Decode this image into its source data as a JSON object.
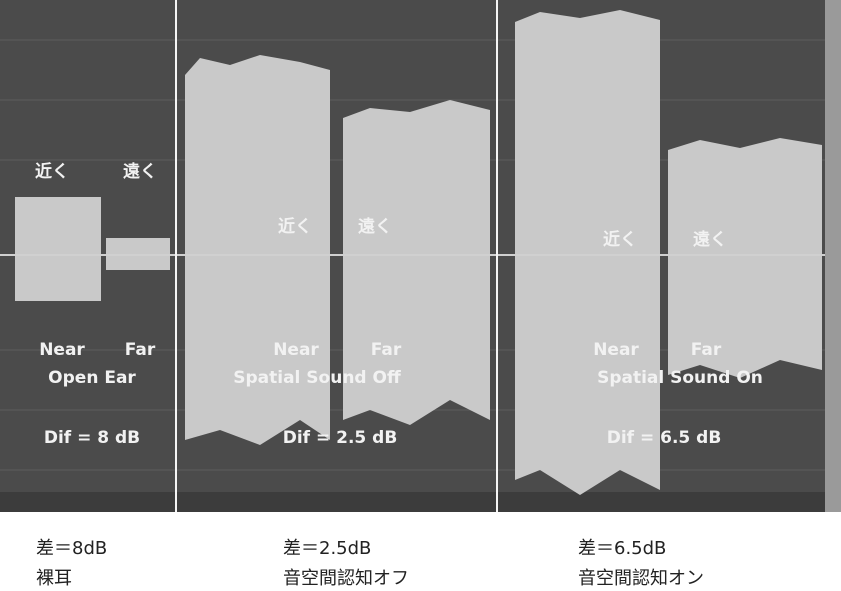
{
  "panels": [
    {
      "near_jp": "近く",
      "far_jp": "遠く",
      "near": "Near",
      "far": "Far",
      "condition": "Open Ear",
      "dif": "Dif = 8 dB",
      "caption_dif": "差＝8dB",
      "caption_condition": "裸耳"
    },
    {
      "near_jp": "近く",
      "far_jp": "遠く",
      "near": "Near",
      "far": "Far",
      "condition": "Spatial Sound Off",
      "dif": "Dif = 2.5 dB",
      "caption_dif": "差＝2.5dB",
      "caption_condition": "音空間認知オフ"
    },
    {
      "near_jp": "近く",
      "far_jp": "遠く",
      "near": "Near",
      "far": "Far",
      "condition": "Spatial Sound On",
      "dif": "Dif = 6.5 dB",
      "caption_dif": "差＝6.5dB",
      "caption_condition": "音空間認知オン"
    }
  ]
}
